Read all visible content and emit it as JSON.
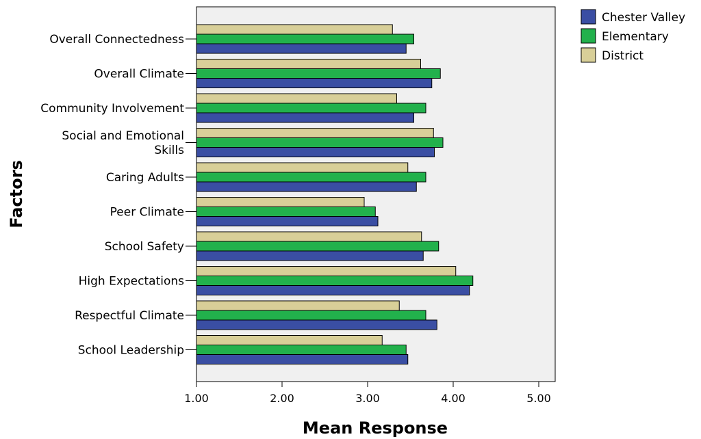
{
  "chart_data": {
    "type": "bar",
    "orientation": "horizontal",
    "xlabel": "Mean Response",
    "ylabel": "Factors",
    "xlim": [
      1.0,
      5.2
    ],
    "xticks": [
      1,
      2,
      3,
      4,
      5
    ],
    "xtick_labels": [
      "1.00",
      "2.00",
      "3.00",
      "4.00",
      "5.00"
    ],
    "grid": false,
    "legend_position": "top-right",
    "categories": [
      [
        "Overall Connectedness"
      ],
      [
        "Overall Climate"
      ],
      [
        "Community Involvement"
      ],
      [
        "Social and Emotional",
        "Skills"
      ],
      [
        "Caring Adults"
      ],
      [
        "Peer Climate"
      ],
      [
        "School Safety"
      ],
      [
        "High Expectations"
      ],
      [
        "Respectful Climate"
      ],
      [
        "School Leadership"
      ]
    ],
    "series": [
      {
        "name": "District",
        "color": "#d8cf98",
        "values": [
          3.29,
          3.62,
          3.34,
          3.77,
          3.47,
          2.96,
          3.63,
          4.03,
          3.37,
          3.17
        ]
      },
      {
        "name": "Elementary",
        "color": "#22b14c",
        "values": [
          3.54,
          3.85,
          3.68,
          3.88,
          3.68,
          3.09,
          3.83,
          4.23,
          3.68,
          3.45
        ]
      },
      {
        "name": "Chester Valley",
        "color": "#3a4ea3",
        "values": [
          3.45,
          3.75,
          3.54,
          3.78,
          3.57,
          3.12,
          3.65,
          4.19,
          3.81,
          3.47
        ]
      }
    ],
    "legend_order": [
      "Chester Valley",
      "Elementary",
      "District"
    ]
  }
}
